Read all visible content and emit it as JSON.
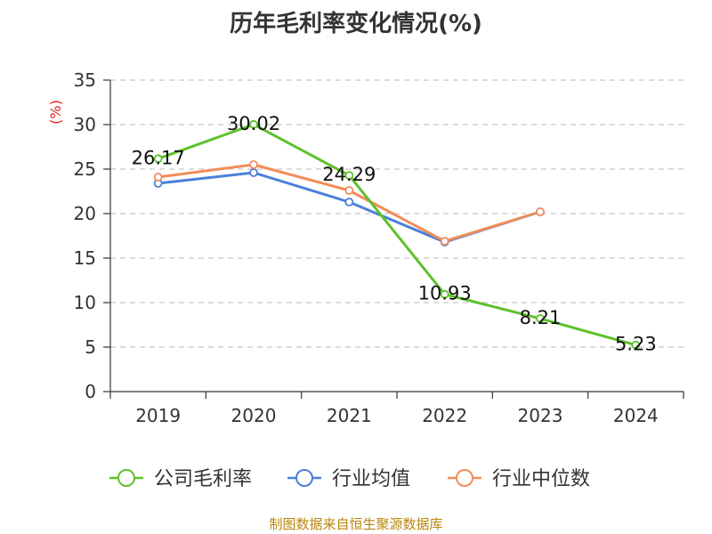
{
  "colors": {
    "company": "#5ec12a",
    "avg": "#4b7fd8",
    "median": "#f28c5a",
    "grid": "#c8c8c8",
    "axis": "#333333",
    "unit": "#e02020"
  },
  "chart_data": {
    "type": "line",
    "title": "历年毛利率变化情况(%)",
    "ylabel": "(%)",
    "xlabel": "",
    "categories": [
      "2019",
      "2020",
      "2021",
      "2022",
      "2023",
      "2024"
    ],
    "ylim": [
      0,
      35
    ],
    "yticks": [
      0,
      5,
      10,
      15,
      20,
      25,
      30,
      35
    ],
    "grid": true,
    "legend_position": "bottom",
    "series": [
      {
        "name": "公司毛利率",
        "color_key": "company",
        "values": [
          26.17,
          30.02,
          24.29,
          10.93,
          8.21,
          5.23
        ],
        "labels": [
          "26.17",
          "30.02",
          "24.29",
          "10.93",
          "8.21",
          "5.23"
        ]
      },
      {
        "name": "行业均值",
        "color_key": "avg",
        "values": [
          23.4,
          24.6,
          21.3,
          16.8,
          20.2,
          null
        ]
      },
      {
        "name": "行业中位数",
        "color_key": "median",
        "values": [
          24.1,
          25.5,
          22.6,
          16.9,
          20.2,
          null
        ]
      }
    ]
  },
  "source_text": "制图数据来自恒生聚源数据库"
}
